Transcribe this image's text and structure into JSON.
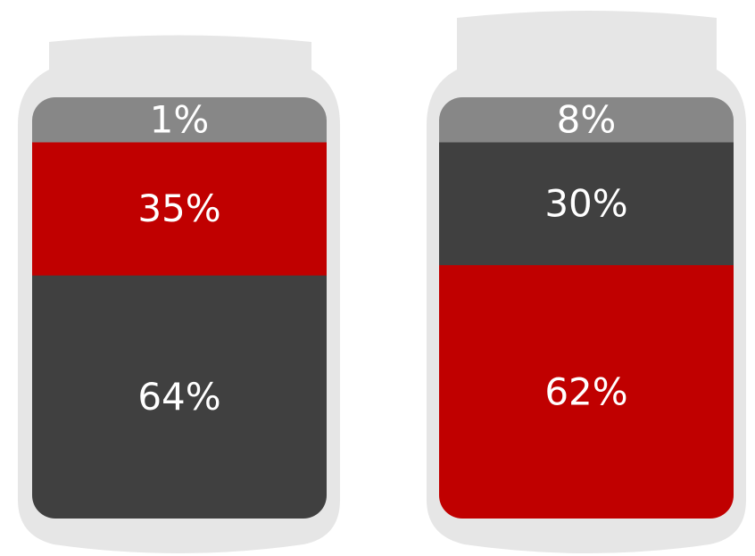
{
  "chart_data": {
    "type": "bar",
    "stacked": true,
    "orientation": "vertical",
    "title": "",
    "xlabel": "",
    "ylabel": "",
    "ylim": [
      0,
      100
    ],
    "grid": false,
    "legend": "none",
    "categories": [
      "",
      ""
    ],
    "cans": [
      {
        "segments": [
          {
            "value": 64,
            "label": "64%",
            "color": "#404040"
          },
          {
            "value": 35,
            "label": "35%",
            "color": "#c00000"
          },
          {
            "value": 1,
            "label": "1%",
            "color": "#878787"
          }
        ]
      },
      {
        "segments": [
          {
            "value": 62,
            "label": "62%",
            "color": "#c00000"
          },
          {
            "value": 30,
            "label": "30%",
            "color": "#404040"
          },
          {
            "value": 8,
            "label": "8%",
            "color": "#878787"
          }
        ]
      }
    ],
    "can_color": "#e6e6e6"
  }
}
